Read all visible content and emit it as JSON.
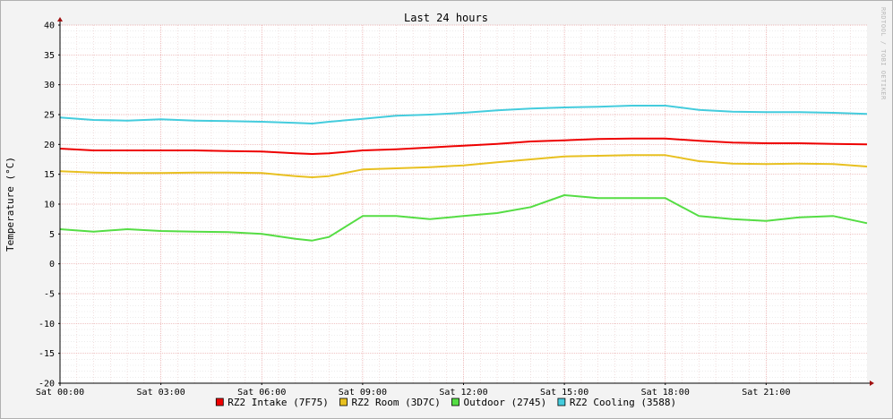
{
  "chart_data": {
    "type": "line",
    "title": "Last 24 hours",
    "ylabel": "Temperature (°C)",
    "xlabel": "",
    "watermark": "RRDTOOL / TOBI OETIKER",
    "ylim": [
      -20,
      40
    ],
    "yticks": [
      "40",
      "35",
      "30",
      "25",
      "20",
      "15",
      "10",
      "5",
      "0",
      "-5",
      "-10",
      "-15",
      "-20"
    ],
    "ytick_values": [
      40,
      35,
      30,
      25,
      20,
      15,
      10,
      5,
      0,
      -5,
      -10,
      -15,
      -20
    ],
    "xlim": [
      0,
      24
    ],
    "xticks": [
      "Sat 00:00",
      "Sat 03:00",
      "Sat 06:00",
      "Sat 09:00",
      "Sat 12:00",
      "Sat 15:00",
      "Sat 18:00",
      "Sat 21:00"
    ],
    "xtick_values": [
      0,
      3,
      6,
      9,
      12,
      15,
      18,
      21
    ],
    "grid": true,
    "legend_position": "bottom",
    "x": [
      0,
      1,
      2,
      3,
      4,
      5,
      6,
      7,
      7.5,
      8,
      9,
      10,
      11,
      12,
      13,
      14,
      15,
      16,
      17,
      18,
      19,
      20,
      21,
      22,
      23,
      24
    ],
    "series": [
      {
        "name": "RZ2 Intake (7F75)",
        "color": "#ee0000",
        "values": [
          19.3,
          19.0,
          19.0,
          19.0,
          19.0,
          18.9,
          18.8,
          18.5,
          18.4,
          18.5,
          19.0,
          19.2,
          19.5,
          19.8,
          20.1,
          20.5,
          20.7,
          20.9,
          21.0,
          21.0,
          20.6,
          20.3,
          20.2,
          20.2,
          20.1,
          20.0
        ]
      },
      {
        "name": "RZ2 Room (3D7C)",
        "color": "#e8c020",
        "values": [
          15.5,
          15.3,
          15.2,
          15.2,
          15.3,
          15.3,
          15.2,
          14.7,
          14.5,
          14.7,
          15.8,
          16.0,
          16.2,
          16.5,
          17.0,
          17.5,
          18.0,
          18.1,
          18.2,
          18.2,
          17.2,
          16.8,
          16.7,
          16.8,
          16.7,
          16.3
        ]
      },
      {
        "name": "Outdoor (2745)",
        "color": "#55dd44",
        "values": [
          5.8,
          5.4,
          5.8,
          5.5,
          5.4,
          5.3,
          5.0,
          4.2,
          3.9,
          4.5,
          8.0,
          8.0,
          7.5,
          8.0,
          8.5,
          9.5,
          11.5,
          11.0,
          11.0,
          11.0,
          8.0,
          7.5,
          7.2,
          7.8,
          8.0,
          6.8
        ]
      },
      {
        "name": "RZ2 Cooling (3588)",
        "color": "#44ccdd",
        "values": [
          24.5,
          24.1,
          24.0,
          24.2,
          24.0,
          23.9,
          23.8,
          23.6,
          23.5,
          23.8,
          24.3,
          24.8,
          25.0,
          25.3,
          25.7,
          26.0,
          26.2,
          26.3,
          26.5,
          26.5,
          25.8,
          25.5,
          25.4,
          25.4,
          25.3,
          25.1
        ]
      }
    ]
  }
}
